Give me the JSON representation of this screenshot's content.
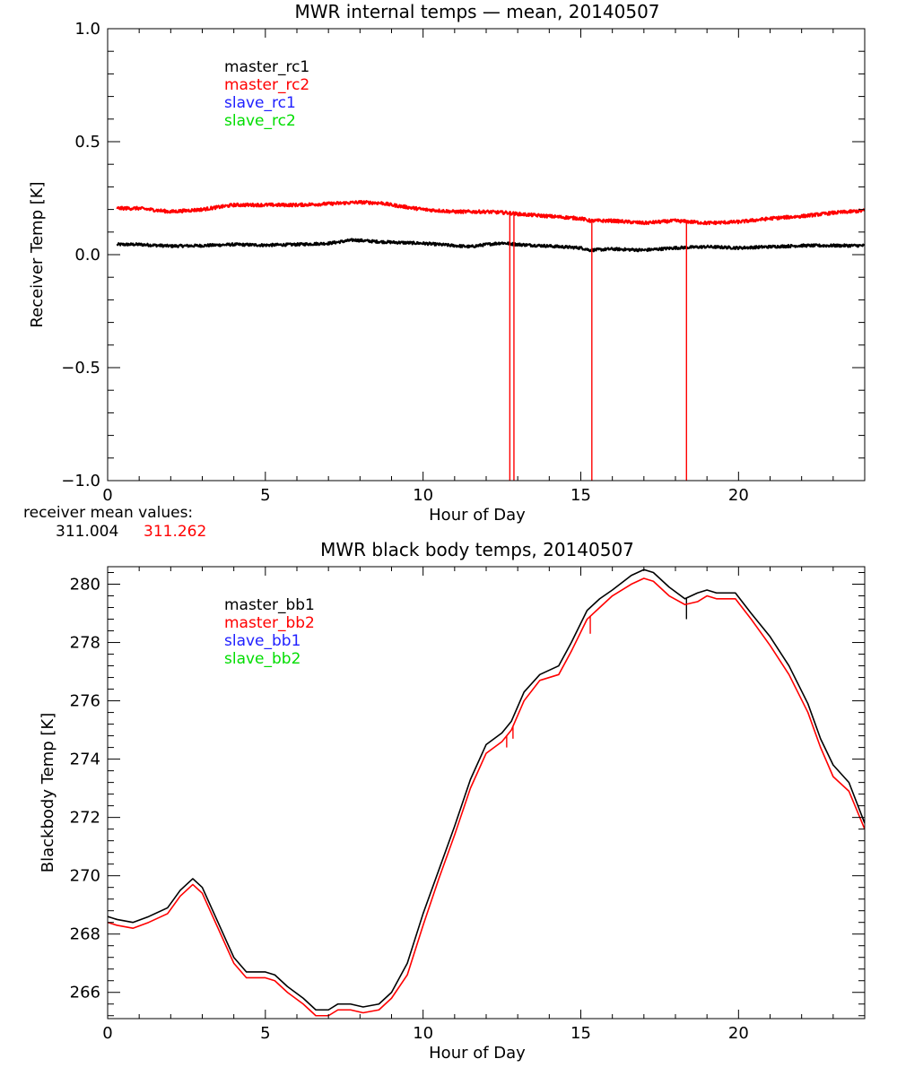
{
  "chart_data": [
    {
      "type": "line",
      "title": "MWR internal temps — mean, 20140507",
      "xlabel": "Hour of Day",
      "ylabel": "Receiver Temp [K]",
      "xlim": [
        0,
        24
      ],
      "ylim": [
        -1.0,
        1.0
      ],
      "xticks": [
        0,
        5,
        10,
        15,
        20
      ],
      "yticks": [
        -1.0,
        -0.5,
        0.0,
        0.5,
        1.0
      ],
      "ytick_labels": [
        "−1.0",
        "−0.5",
        "0.0",
        "0.5",
        "1.0"
      ],
      "grid": false,
      "legend_position": "top-left",
      "legend": [
        {
          "name": "master_rc1",
          "color": "#000000"
        },
        {
          "name": "master_rc2",
          "color": "#ff0000"
        },
        {
          "name": "slave_rc1",
          "color": "#2020ff"
        },
        {
          "name": "slave_rc2",
          "color": "#00dd00"
        }
      ],
      "series": [
        {
          "name": "master_rc1",
          "color": "#000000",
          "x": [
            0.3,
            1,
            2,
            3,
            4,
            5,
            6,
            7,
            7.8,
            8.5,
            9,
            10,
            11,
            11.5,
            12,
            12.5,
            13,
            14,
            15,
            15.3,
            16,
            17,
            18,
            19,
            20,
            21,
            22,
            23,
            24
          ],
          "y": [
            0.045,
            0.045,
            0.038,
            0.04,
            0.045,
            0.042,
            0.045,
            0.05,
            0.065,
            0.058,
            0.055,
            0.05,
            0.04,
            0.035,
            0.045,
            0.052,
            0.045,
            0.038,
            0.03,
            0.02,
            0.025,
            0.02,
            0.03,
            0.035,
            0.03,
            0.035,
            0.04,
            0.04,
            0.04
          ],
          "noise": 0.006
        },
        {
          "name": "master_rc2",
          "color": "#ff0000",
          "x": [
            0.3,
            1,
            2,
            3,
            4,
            5,
            6,
            7,
            8,
            8.7,
            9,
            10,
            11,
            12,
            12.7,
            13,
            14,
            15,
            15.3,
            16,
            17,
            18,
            19,
            20,
            21,
            22,
            23,
            24
          ],
          "y": [
            0.205,
            0.205,
            0.19,
            0.2,
            0.22,
            0.22,
            0.22,
            0.225,
            0.232,
            0.228,
            0.22,
            0.2,
            0.19,
            0.19,
            0.185,
            0.18,
            0.17,
            0.16,
            0.15,
            0.15,
            0.14,
            0.15,
            0.14,
            0.145,
            0.16,
            0.17,
            0.185,
            0.195
          ],
          "noise": 0.007,
          "spikes": [
            {
              "x": 12.75,
              "y": -1.0
            },
            {
              "x": 12.88,
              "y": -1.0
            },
            {
              "x": 15.35,
              "y": -1.0
            },
            {
              "x": 18.35,
              "y": -1.0
            }
          ]
        }
      ]
    },
    {
      "type": "line",
      "title": "MWR black body temps, 20140507",
      "xlabel": "Hour of Day",
      "ylabel": "Blackbody Temp [K]",
      "xlim": [
        0,
        24
      ],
      "ylim": [
        265.1,
        280.6
      ],
      "xticks": [
        0,
        5,
        10,
        15,
        20
      ],
      "yticks": [
        266,
        268,
        270,
        272,
        274,
        276,
        278,
        280
      ],
      "grid": false,
      "legend_position": "top-left",
      "legend": [
        {
          "name": "master_bb1",
          "color": "#000000"
        },
        {
          "name": "master_bb2",
          "color": "#ff0000"
        },
        {
          "name": "slave_bb1",
          "color": "#2020ff"
        },
        {
          "name": "slave_bb2",
          "color": "#00dd00"
        }
      ],
      "series": [
        {
          "name": "master_bb1",
          "color": "#000000",
          "x": [
            0,
            0.3,
            0.8,
            1.3,
            1.9,
            2.3,
            2.7,
            3.0,
            3.5,
            4.0,
            4.4,
            5.0,
            5.3,
            5.7,
            6.2,
            6.6,
            7.0,
            7.3,
            7.7,
            8.1,
            8.6,
            9.0,
            9.5,
            10.0,
            10.5,
            11.0,
            11.5,
            12.0,
            12.5,
            12.8,
            13.2,
            13.7,
            14.3,
            14.7,
            15.2,
            15.6,
            16.0,
            16.6,
            17.0,
            17.3,
            17.8,
            18.3,
            18.7,
            19.0,
            19.3,
            19.9,
            20.4,
            21.0,
            21.6,
            22.2,
            22.6,
            23.0,
            23.5,
            24.0
          ],
          "y": [
            268.6,
            268.5,
            268.4,
            268.6,
            268.9,
            269.5,
            269.9,
            269.6,
            268.4,
            267.2,
            266.7,
            266.7,
            266.6,
            266.2,
            265.8,
            265.4,
            265.4,
            265.6,
            265.6,
            265.5,
            265.6,
            266.0,
            267.0,
            268.7,
            270.2,
            271.7,
            273.3,
            274.5,
            274.9,
            275.3,
            276.3,
            276.9,
            277.2,
            278.0,
            279.1,
            279.5,
            279.8,
            280.3,
            280.5,
            280.4,
            279.9,
            279.5,
            279.7,
            279.8,
            279.7,
            279.7,
            279.0,
            278.2,
            277.2,
            275.9,
            274.7,
            273.8,
            273.2,
            271.8
          ],
          "spikes": [
            {
              "x": 18.35,
              "y": 278.8
            }
          ]
        },
        {
          "name": "master_bb2",
          "color": "#ff0000",
          "x": [
            0,
            0.3,
            0.8,
            1.3,
            1.9,
            2.3,
            2.7,
            3.0,
            3.5,
            4.0,
            4.4,
            5.0,
            5.3,
            5.7,
            6.2,
            6.6,
            7.0,
            7.3,
            7.7,
            8.1,
            8.6,
            9.0,
            9.5,
            10.0,
            10.5,
            11.0,
            11.5,
            12.0,
            12.5,
            12.8,
            13.2,
            13.7,
            14.3,
            14.7,
            15.2,
            15.6,
            16.0,
            16.6,
            17.0,
            17.3,
            17.8,
            18.3,
            18.7,
            19.0,
            19.3,
            19.9,
            20.4,
            21.0,
            21.6,
            22.2,
            22.6,
            23.0,
            23.5,
            24.0
          ],
          "y": [
            268.4,
            268.3,
            268.2,
            268.4,
            268.7,
            269.3,
            269.7,
            269.4,
            268.2,
            267.0,
            266.5,
            266.5,
            266.4,
            266.0,
            265.6,
            265.2,
            265.2,
            265.4,
            265.4,
            265.3,
            265.4,
            265.8,
            266.6,
            268.3,
            269.9,
            271.4,
            273.0,
            274.2,
            274.6,
            275.0,
            276.0,
            276.7,
            276.9,
            277.7,
            278.8,
            279.2,
            279.6,
            280.0,
            280.2,
            280.1,
            279.6,
            279.3,
            279.4,
            279.6,
            279.5,
            279.5,
            278.8,
            277.9,
            276.9,
            275.6,
            274.4,
            273.4,
            272.9,
            271.6
          ],
          "spikes": [
            {
              "x": 12.65,
              "y": 274.4
            },
            {
              "x": 12.85,
              "y": 274.7
            },
            {
              "x": 15.3,
              "y": 278.3
            }
          ]
        }
      ]
    }
  ],
  "receiver_mean": {
    "label": "receiver mean values:",
    "master_value": "311.004",
    "master_color": "#000000",
    "slave_value": "311.262",
    "slave_color": "#ff0000"
  }
}
